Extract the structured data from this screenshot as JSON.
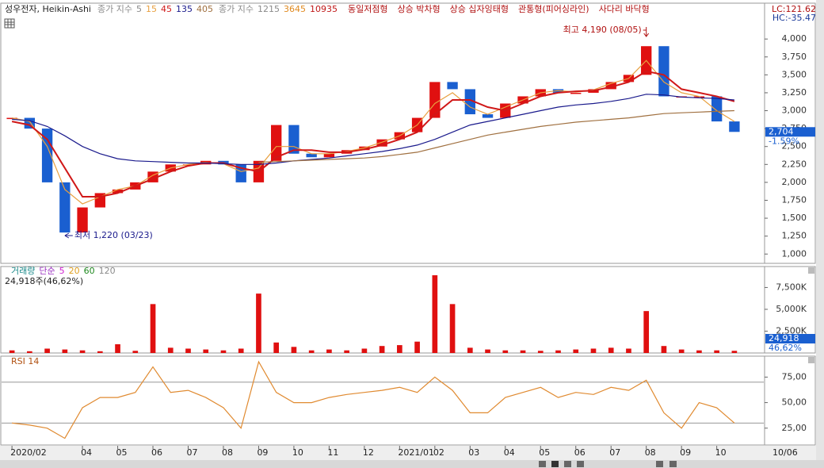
{
  "chart_data": [
    {
      "type": "candlestick",
      "title": "성우전자, Heikin-Ashi",
      "legend_prefix": "종가 지수",
      "legend_extra": [
        {
          "label": "1215",
          "color": "#8a8a8a"
        },
        {
          "label": "3645",
          "color": "#e08a20"
        },
        {
          "label": "10935",
          "color": "#c01818"
        }
      ],
      "patterns": [
        "동일저점형",
        "상승 박차형",
        "상승 십자잉태형",
        "관통형(피어싱라인)",
        "사다리 바닥형"
      ],
      "lc_label": "LC:121.62",
      "hc_label": "HC:-35.47",
      "high_label": "최고 4,190 (08/05)",
      "low_label": "최저 1,220 (03/23)",
      "last_price_label": "2,704",
      "last_change_label": "-1.59%",
      "x_end_label": "10/06",
      "categories": [
        "2020/02",
        null,
        null,
        null,
        "04",
        null,
        "05",
        null,
        "06",
        null,
        "07",
        null,
        "08",
        null,
        "09",
        null,
        "10",
        null,
        "11",
        null,
        "12",
        null,
        "2021/01",
        null,
        "02",
        null,
        "03",
        null,
        "04",
        null,
        "05",
        null,
        "06",
        null,
        "07",
        null,
        "08",
        null,
        "09",
        null,
        "10",
        null
      ],
      "series": [
        {
          "name": "5",
          "color": "#e01010",
          "down_color": "#1a5fd0",
          "legend_color": "#8a8a8a",
          "values": [
            2900,
            2750,
            2000,
            1300,
            1650,
            1850,
            1900,
            2000,
            2150,
            2250,
            2250,
            2300,
            2250,
            2000,
            2300,
            2800,
            2400,
            2350,
            2400,
            2450,
            2500,
            2600,
            2700,
            2900,
            3400,
            3300,
            2950,
            2900,
            3100,
            3200,
            3300,
            3250,
            3250,
            3300,
            3400,
            3500,
            3900,
            3200,
            3200,
            3200,
            2850,
            2704
          ]
        },
        {
          "name": "15",
          "color": "#e8a040",
          "values": [
            2900,
            2850,
            2500,
            1900,
            1700,
            1800,
            1900,
            1950,
            2100,
            2200,
            2250,
            2280,
            2260,
            2150,
            2200,
            2500,
            2500,
            2400,
            2400,
            2430,
            2480,
            2560,
            2650,
            2800,
            3100,
            3250,
            3050,
            2950,
            3050,
            3150,
            3250,
            3280,
            3260,
            3290,
            3380,
            3450,
            3700,
            3400,
            3250,
            3200,
            3000,
            2850
          ]
        },
        {
          "name": "45",
          "color": "#d01818",
          "values": [
            2850,
            2800,
            2600,
            2200,
            1800,
            1800,
            1850,
            1950,
            2050,
            2150,
            2230,
            2270,
            2270,
            2200,
            2150,
            2350,
            2450,
            2450,
            2420,
            2420,
            2460,
            2520,
            2600,
            2700,
            2950,
            3150,
            3150,
            3050,
            3000,
            3100,
            3200,
            3250,
            3270,
            3280,
            3330,
            3400,
            3550,
            3500,
            3300,
            3250,
            3200,
            3130
          ]
        },
        {
          "name": "135",
          "color": "#1a1a8c",
          "values": [
            2880,
            2860,
            2780,
            2650,
            2500,
            2400,
            2330,
            2300,
            2290,
            2280,
            2270,
            2270,
            2260,
            2250,
            2250,
            2270,
            2300,
            2320,
            2340,
            2370,
            2400,
            2430,
            2470,
            2520,
            2600,
            2700,
            2800,
            2850,
            2900,
            2950,
            3000,
            3050,
            3080,
            3100,
            3130,
            3170,
            3230,
            3220,
            3190,
            3180,
            3170,
            3150
          ]
        },
        {
          "name": "405",
          "color": "#a07040",
          "values": [
            null,
            null,
            null,
            null,
            null,
            null,
            null,
            null,
            null,
            null,
            null,
            null,
            null,
            null,
            2280,
            2290,
            2300,
            2310,
            2320,
            2330,
            2340,
            2360,
            2390,
            2420,
            2480,
            2540,
            2600,
            2660,
            2700,
            2740,
            2780,
            2810,
            2840,
            2860,
            2880,
            2900,
            2930,
            2960,
            2970,
            2980,
            2990,
            3000
          ]
        }
      ],
      "ylim": [
        870,
        4500
      ],
      "yticks": [
        {
          "value": 1000,
          "label": "1,000"
        },
        {
          "value": 1250,
          "label": "1,250"
        },
        {
          "value": 1500,
          "label": "1,500"
        },
        {
          "value": 1750,
          "label": "1,750"
        },
        {
          "value": 2000,
          "label": "2,000"
        },
        {
          "value": 2250,
          "label": "2,250"
        },
        {
          "value": 2500,
          "label": "2,500"
        },
        {
          "value": 2750,
          "label": "2,750"
        },
        {
          "value": 3000,
          "label": "3,000"
        },
        {
          "value": 3250,
          "label": "3,250"
        },
        {
          "value": 3500,
          "label": "3,500"
        },
        {
          "value": 3750,
          "label": "3,750"
        },
        {
          "value": 4000,
          "label": "4,000"
        }
      ]
    },
    {
      "type": "bar",
      "legend_items": [
        {
          "label": "거래량",
          "color": "#1a8a8a"
        },
        {
          "label": "단순",
          "color": "#9a30c0"
        },
        {
          "label": "5",
          "color": "#d020d0"
        },
        {
          "label": "20",
          "color": "#e0a020"
        },
        {
          "label": "60",
          "color": "#208a20"
        },
        {
          "label": "120",
          "color": "#8a8a8a"
        }
      ],
      "summary_label": "24,918주(46,62%)",
      "tag_labels": [
        "24,918",
        "46,62%"
      ],
      "color": "#e01010",
      "values": [
        300,
        200,
        500,
        400,
        300,
        200,
        1000,
        250,
        5600,
        600,
        500,
        400,
        300,
        500,
        6800,
        1200,
        700,
        300,
        400,
        300,
        500,
        800,
        900,
        1300,
        8900,
        5600,
        600,
        400,
        300,
        300,
        250,
        300,
        400,
        500,
        600,
        500,
        4800,
        800,
        400,
        300,
        300,
        250
      ],
      "ylim": [
        0,
        9900
      ],
      "yticks": [
        {
          "value": 2500,
          "label": "2,500K"
        },
        {
          "value": 5000,
          "label": "5,000K"
        },
        {
          "value": 7500,
          "label": "7,500K"
        }
      ]
    },
    {
      "type": "line",
      "legend_label": "RSI 14",
      "color": "#e08a30",
      "ref_lines": [
        70,
        30
      ],
      "values": [
        30,
        28,
        25,
        15,
        45,
        55,
        55,
        60,
        85,
        60,
        62,
        55,
        45,
        25,
        90,
        60,
        50,
        50,
        55,
        58,
        60,
        62,
        65,
        60,
        75,
        62,
        40,
        40,
        55,
        60,
        65,
        55,
        60,
        58,
        65,
        62,
        72,
        40,
        25,
        50,
        45,
        30
      ],
      "ylim": [
        8.5,
        95.5
      ],
      "yticks": [
        {
          "value": 25,
          "label": "25,00"
        },
        {
          "value": 50,
          "label": "50,00"
        },
        {
          "value": 75,
          "label": "75,00"
        }
      ]
    }
  ]
}
